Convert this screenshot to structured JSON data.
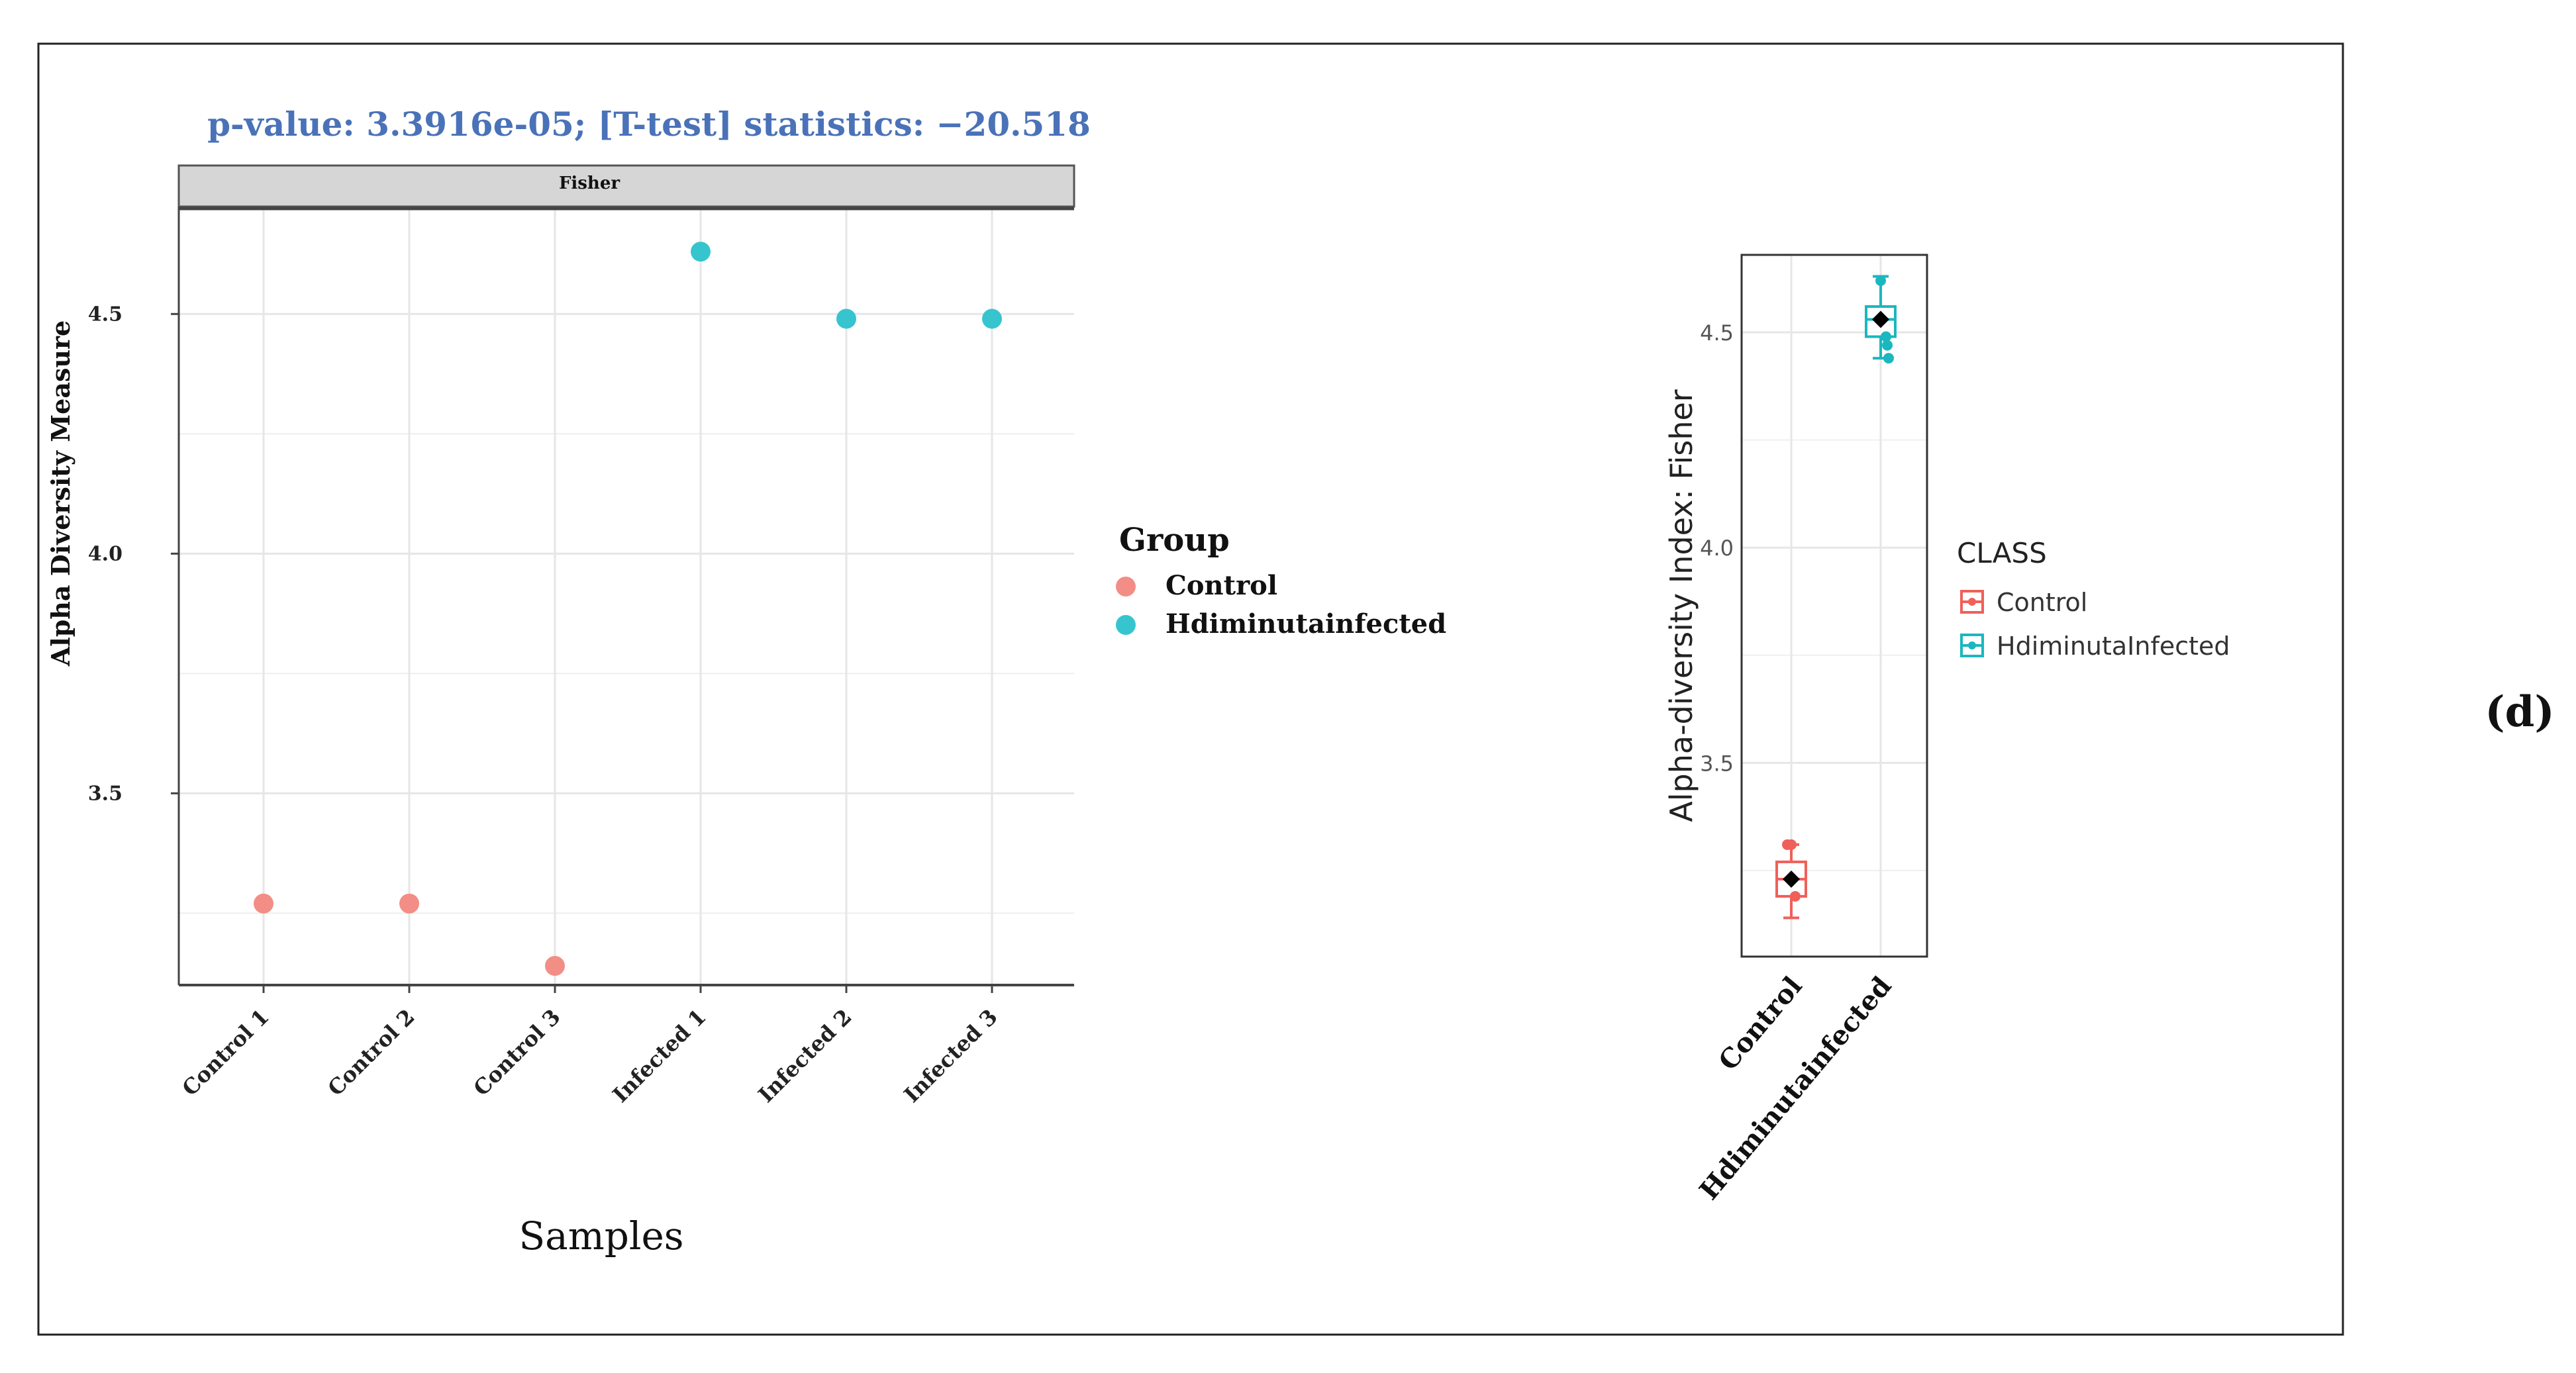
{
  "panel_label": "(d)",
  "colors": {
    "control": "#f28e86",
    "infected": "#36c5cf",
    "box_control": "#f0605a",
    "box_infected": "#1bb7bf",
    "stats_text": "#4a72b8",
    "strip_fill": "#d6d6d6",
    "grid": "#e6e6e6"
  },
  "chart_data": [
    {
      "type": "scatter",
      "stats_text": "p-value: 3.3916e-05; [T-test] statistics: −20.518",
      "facet_strip": "Fisher",
      "xlabel": "Samples",
      "ylabel": "Alpha Diversity Measure",
      "ylim": [
        3.1,
        4.72
      ],
      "yticks": [
        "3.5",
        "4.0",
        "4.5"
      ],
      "categories": [
        "Control 1",
        "Control 2",
        "Control 3",
        "Infected 1",
        "Infected 2",
        "Infected 3"
      ],
      "values": [
        3.27,
        3.27,
        3.14,
        4.63,
        4.49,
        4.49
      ],
      "groups": [
        "Control",
        "Control",
        "Control",
        "Hdiminutainfected",
        "Hdiminutainfected",
        "Hdiminutainfected"
      ],
      "legend": {
        "title": "Group",
        "placement": "right",
        "entries": [
          "Control",
          "Hdiminutainfected"
        ]
      }
    },
    {
      "type": "box",
      "ylabel": "Alpha-diversity Index: Fisher",
      "ylim": [
        3.05,
        4.68
      ],
      "yticks": [
        "3.5",
        "4.0",
        "4.5"
      ],
      "categories": [
        "Control",
        "Hdiminutainfected"
      ],
      "boxes": [
        {
          "name": "Control",
          "min": 3.14,
          "q1": 3.19,
          "median": 3.23,
          "q3": 3.27,
          "max": 3.31,
          "mean": 3.23,
          "points": [
            3.31,
            3.31,
            3.19
          ]
        },
        {
          "name": "Hdiminutainfected",
          "min": 4.44,
          "q1": 4.49,
          "median": 4.53,
          "q3": 4.56,
          "max": 4.63,
          "mean": 4.53,
          "points": [
            4.62,
            4.49,
            4.47,
            4.44
          ]
        }
      ],
      "legend": {
        "title": "CLASS",
        "placement": "right",
        "entries": [
          "Control",
          "HdiminutaInfected"
        ]
      }
    }
  ]
}
